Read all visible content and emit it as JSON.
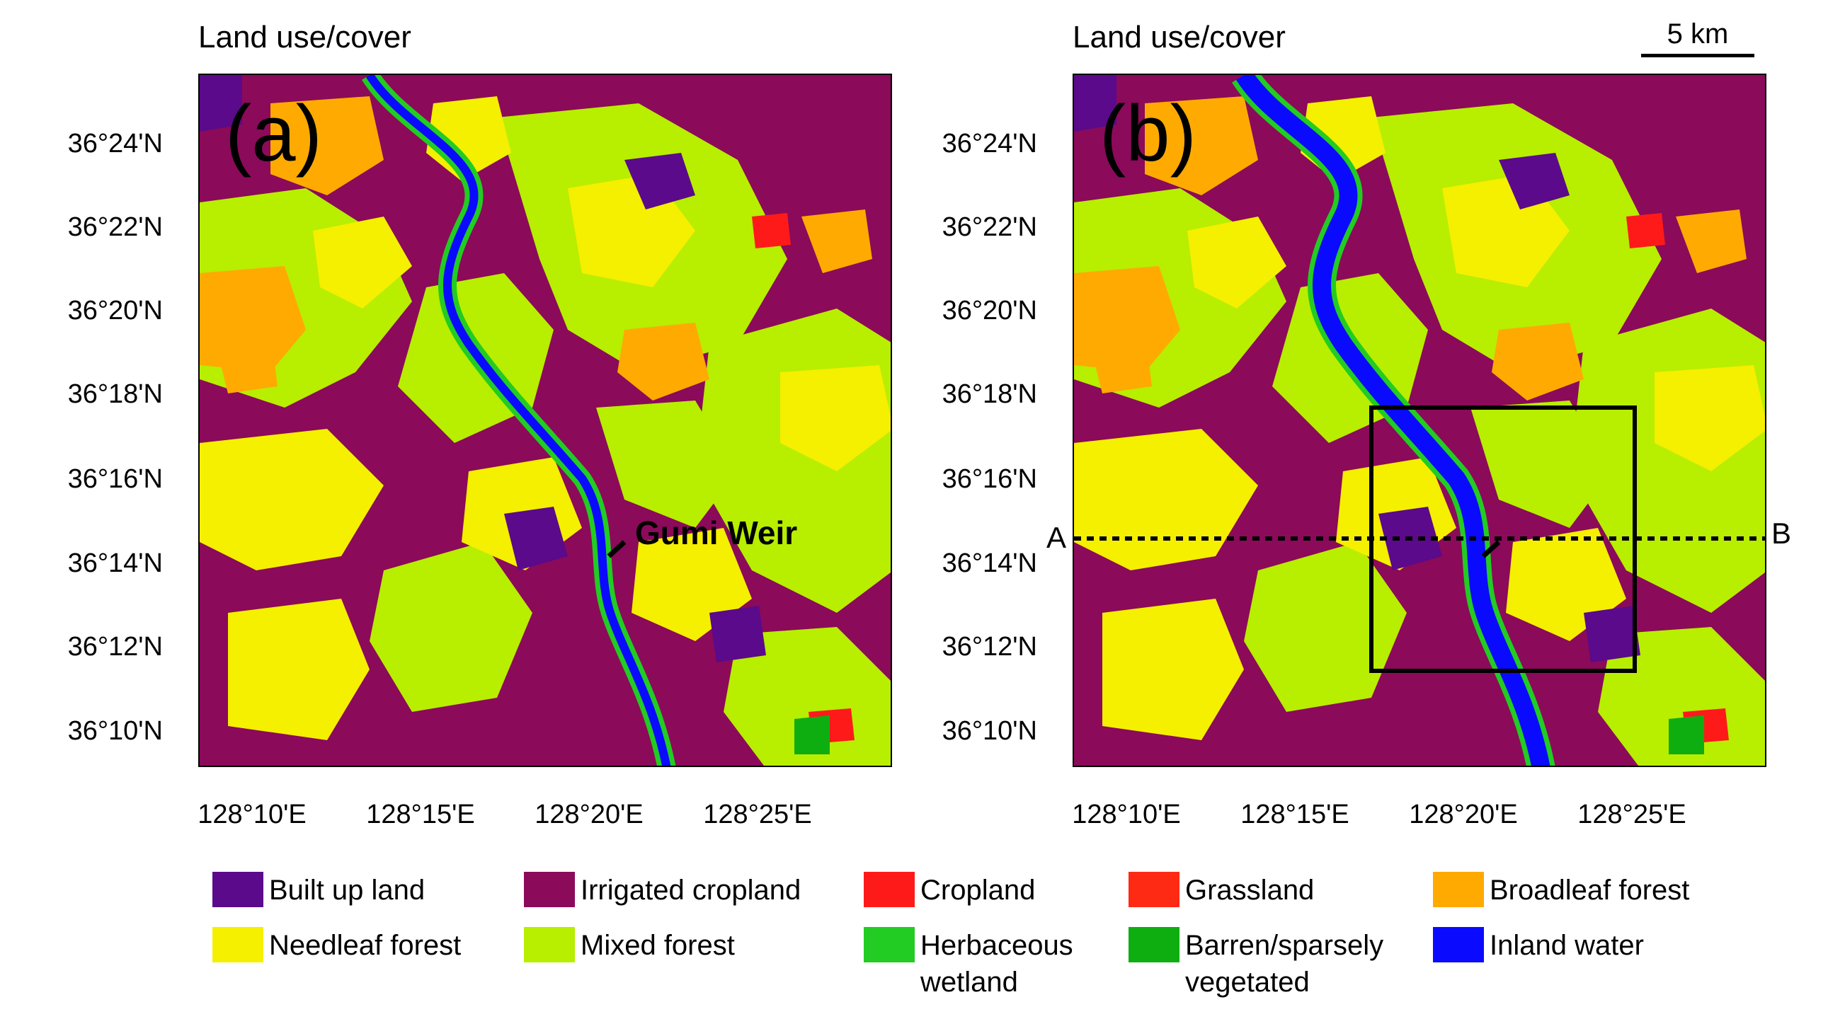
{
  "panels": [
    {
      "title": "Land use/cover",
      "letter": "(a)",
      "annotation": "Gumi Weir"
    },
    {
      "title": "Land use/cover",
      "letter": "(b)",
      "section_start": "A",
      "section_end": "B"
    }
  ],
  "scale_bar": {
    "label": "5 km"
  },
  "latitude_labels": [
    "36°24'N",
    "36°22'N",
    "36°20'N",
    "36°18'N",
    "36°16'N",
    "36°14'N",
    "36°12'N",
    "36°10'N"
  ],
  "longitude_labels": [
    "128°10'E",
    "128°15'E",
    "128°20'E",
    "128°25'E"
  ],
  "legend": [
    {
      "label": "Built up land",
      "color": "#5a0a8a"
    },
    {
      "label": "Irrigated cropland",
      "color": "#8b0a5a"
    },
    {
      "label": "Cropland",
      "color": "#ff1a1a"
    },
    {
      "label": "Grassland",
      "color": "#ff2a14"
    },
    {
      "label": "Broadleaf forest",
      "color": "#ffaa00"
    },
    {
      "label": "Needleaf forest",
      "color": "#f5ef00"
    },
    {
      "label": "Mixed forest",
      "color": "#b8ee00"
    },
    {
      "label": "Herbaceous wetland",
      "color": "#22cc22"
    },
    {
      "label": "Barren/sparsely vegetated",
      "color": "#0fae10"
    },
    {
      "label": "Inland water",
      "color": "#0a0aff"
    }
  ]
}
